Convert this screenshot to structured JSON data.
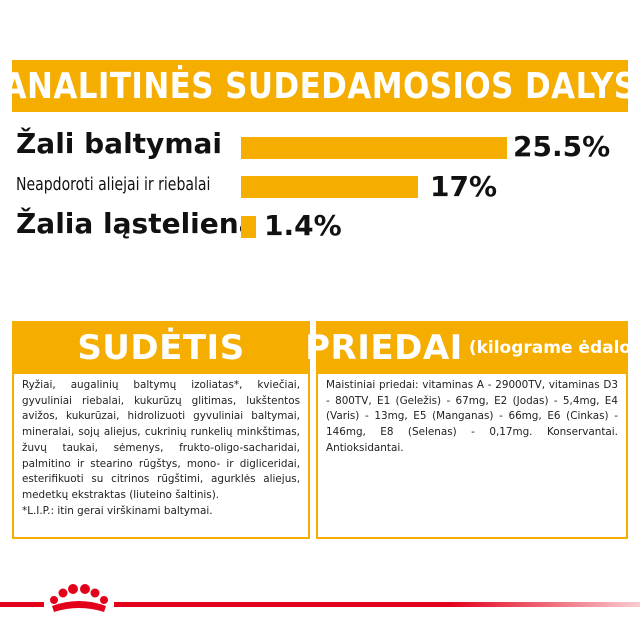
{
  "header": {
    "title": "ANALITINĖS SUDEDAMOSIOS DALYS"
  },
  "analytics": [
    {
      "label": "Žali baltymai",
      "value": 25.5,
      "display": "25.5%"
    },
    {
      "label": "Neapdoroti aliejai ir riebalai",
      "value": 17,
      "display": "17%"
    },
    {
      "label": "Žalia ląsteliena",
      "value": 1.4,
      "display": "1.4%"
    }
  ],
  "composition": {
    "title": "SUDĖTIS",
    "text": "Ryžiai, augalinių baltymų izoliatas*, kviečiai, gyvuliniai riebalai, kukurūzų glitimas, lukštentos avižos, kukurūzai, hidrolizuoti gyvuliniai baltymai, mineralai, sojų aliejus, cukrinių runkelių minkštimas, žuvų taukai, sėmenys, frukto-oligo-sacharidai, palmitino ir stearino rūgštys, mono- ir digliceridai, esterifikuoti su citrinos rūgštimi, agurklės aliejus, medetkų ekstraktas (liuteino šaltinis).",
    "footnote": "*L.I.P.: itin gerai virškinami baltymai."
  },
  "additives": {
    "title": "PRIEDAI",
    "subtitle": "(kilograme ėdalo)",
    "text": "Maistiniai priedai: vitaminas A - 29000TV, vitaminas D3 - 800TV, E1 (Geležis) - 67mg, E2 (Jodas) - 5,4mg, E4 (Varis) - 13mg, E5 (Manganas) - 66mg, E6 (Cinkas) - 146mg, E8 (Selenas) - 0,17mg. Konservantai. Antioksidantai."
  },
  "colors": {
    "accent": "#f5ad00",
    "brand_red": "#e3001b"
  },
  "logo": {
    "icon": "crown-icon"
  }
}
